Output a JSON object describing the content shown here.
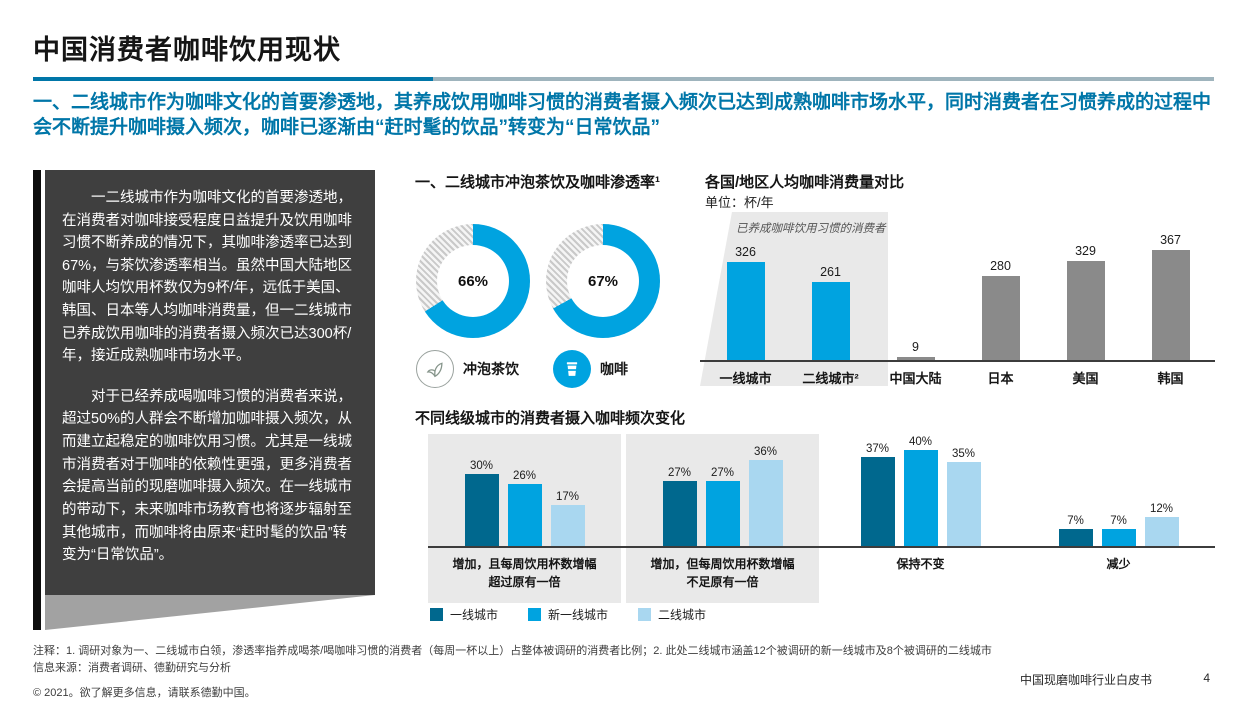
{
  "colors": {
    "accent": "#0076A8",
    "bright_blue": "#00A3E0",
    "bar_gray": "#8A8A8A",
    "series_colors": [
      "#00688E",
      "#00A3E0",
      "#A9D7F0"
    ],
    "panel_bg": "#3F3F3F"
  },
  "page": {
    "title": "中国消费者咖啡饮用现状",
    "subtitle": "一、二线城市作为咖啡文化的首要渗透地，其养成饮用咖啡习惯的消费者摄入频次已达到成熟咖啡市场水平，同时消费者在习惯养成的过程中会不断提升咖啡摄入频次，咖啡已逐渐由“赶时髦的饮品”转变为“日常饮品”"
  },
  "sidebar": {
    "paragraphs": [
      "一二线城市作为咖啡文化的首要渗透地，在消费者对咖啡接受程度日益提升及饮用咖啡习惯不断养成的情况下，其咖啡渗透率已达到67%，与茶饮渗透率相当。虽然中国大陆地区咖啡人均饮用杯数仅为9杯/年，远低于美国、韩国、日本等人均咖啡消费量，但一二线城市已养成饮用咖啡的消费者摄入频次已达300杯/年，接近成熟咖啡市场水平。",
      "对于已经养成喝咖啡习惯的消费者来说，超过50%的人群会不断增加咖啡摄入频次，从而建立起稳定的咖啡饮用习惯。尤其是一线城市消费者对于咖啡的依赖性更强，更多消费者会提高当前的现磨咖啡摄入频次。在一线城市的带动下，未来咖啡市场教育也将逐步辐射至其他城市，而咖啡将由原来“赶时髦的饮品”转变为“日常饮品”。"
    ]
  },
  "chart_data": [
    {
      "type": "donut",
      "title": "一、二线城市冲泡茶饮及咖啡渗透率¹",
      "items": [
        {
          "label": "冲泡茶饮",
          "value": 66,
          "pct": "66%",
          "icon": "tea-leaf-icon"
        },
        {
          "label": "咖啡",
          "value": 67,
          "pct": "67%",
          "icon": "coffee-cup-icon"
        }
      ]
    },
    {
      "type": "bar",
      "title": "各国/地区人均咖啡消费量对比",
      "unit": "单位：杯/年",
      "annotation": "已养成咖啡饮用习惯的消费者",
      "categories": [
        "一线城市",
        "二线城市²",
        "中国大陆",
        "日本",
        "美国",
        "韩国"
      ],
      "values": [
        326,
        261,
        9,
        280,
        329,
        367
      ],
      "highlight_first_n": 2,
      "ylim": [
        0,
        400
      ],
      "grid": false,
      "legend_position": "none"
    },
    {
      "type": "grouped-bar",
      "title": "不同线级城市的消费者摄入咖啡频次变化",
      "series": [
        "一线城市",
        "新一线城市",
        "二线城市"
      ],
      "groups": [
        {
          "label": "增加，且每周饮用杯数增幅超过原有一倍",
          "values": [
            30,
            26,
            17
          ],
          "highlighted": true
        },
        {
          "label": "增加，但每周饮用杯数增幅不足原有一倍",
          "values": [
            27,
            27,
            36
          ],
          "highlighted": true
        },
        {
          "label": "保持不变",
          "values": [
            37,
            40,
            35
          ],
          "highlighted": false
        },
        {
          "label": "减少",
          "values": [
            7,
            7,
            12
          ],
          "highlighted": false
        }
      ],
      "ylim": [
        0,
        45
      ],
      "grid": false,
      "legend_position": "bottom"
    }
  ],
  "footer": {
    "notes": "注释：1. 调研对象为一、二线城市白领，渗透率指养成喝茶/喝咖啡习惯的消费者（每周一杯以上）占整体被调研的消费者比例；2. 此处二线城市涵盖12个被调研的新一线城市及8个被调研的二线城市",
    "source": "信息来源：消费者调研、德勤研究与分析",
    "copyright": "© 2021。欲了解更多信息，请联系德勤中国。",
    "doc_title": "中国现磨咖啡行业白皮书",
    "page_number": "4"
  }
}
